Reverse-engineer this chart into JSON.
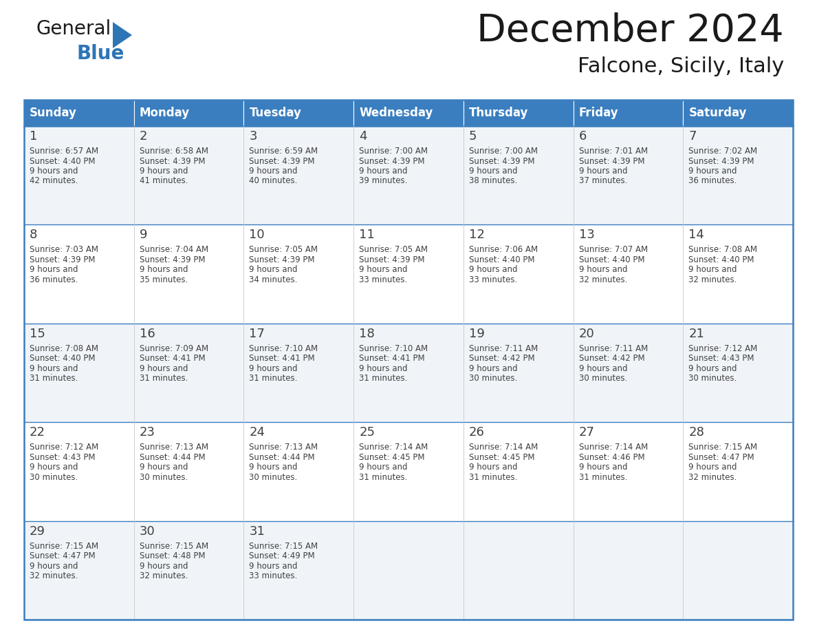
{
  "title": "December 2024",
  "subtitle": "Falcone, Sicily, Italy",
  "header_bg_color": "#3A7EC0",
  "header_text_color": "#FFFFFF",
  "days_of_week": [
    "Sunday",
    "Monday",
    "Tuesday",
    "Wednesday",
    "Thursday",
    "Friday",
    "Saturday"
  ],
  "cell_bg_color_odd": "#F0F4F8",
  "cell_bg_color_even": "#FFFFFF",
  "border_color": "#3A7EC0",
  "text_color": "#404040",
  "logo_general_color": "#1a1a1a",
  "logo_blue_color": "#2E75B6",
  "logo_triangle_color": "#2E75B6",
  "days": [
    {
      "day": 1,
      "col": 0,
      "row": 0,
      "sunrise": "6:57 AM",
      "sunset": "4:40 PM",
      "daylight": "9 hours and 42 minutes."
    },
    {
      "day": 2,
      "col": 1,
      "row": 0,
      "sunrise": "6:58 AM",
      "sunset": "4:39 PM",
      "daylight": "9 hours and 41 minutes."
    },
    {
      "day": 3,
      "col": 2,
      "row": 0,
      "sunrise": "6:59 AM",
      "sunset": "4:39 PM",
      "daylight": "9 hours and 40 minutes."
    },
    {
      "day": 4,
      "col": 3,
      "row": 0,
      "sunrise": "7:00 AM",
      "sunset": "4:39 PM",
      "daylight": "9 hours and 39 minutes."
    },
    {
      "day": 5,
      "col": 4,
      "row": 0,
      "sunrise": "7:00 AM",
      "sunset": "4:39 PM",
      "daylight": "9 hours and 38 minutes."
    },
    {
      "day": 6,
      "col": 5,
      "row": 0,
      "sunrise": "7:01 AM",
      "sunset": "4:39 PM",
      "daylight": "9 hours and 37 minutes."
    },
    {
      "day": 7,
      "col": 6,
      "row": 0,
      "sunrise": "7:02 AM",
      "sunset": "4:39 PM",
      "daylight": "9 hours and 36 minutes."
    },
    {
      "day": 8,
      "col": 0,
      "row": 1,
      "sunrise": "7:03 AM",
      "sunset": "4:39 PM",
      "daylight": "9 hours and 36 minutes."
    },
    {
      "day": 9,
      "col": 1,
      "row": 1,
      "sunrise": "7:04 AM",
      "sunset": "4:39 PM",
      "daylight": "9 hours and 35 minutes."
    },
    {
      "day": 10,
      "col": 2,
      "row": 1,
      "sunrise": "7:05 AM",
      "sunset": "4:39 PM",
      "daylight": "9 hours and 34 minutes."
    },
    {
      "day": 11,
      "col": 3,
      "row": 1,
      "sunrise": "7:05 AM",
      "sunset": "4:39 PM",
      "daylight": "9 hours and 33 minutes."
    },
    {
      "day": 12,
      "col": 4,
      "row": 1,
      "sunrise": "7:06 AM",
      "sunset": "4:40 PM",
      "daylight": "9 hours and 33 minutes."
    },
    {
      "day": 13,
      "col": 5,
      "row": 1,
      "sunrise": "7:07 AM",
      "sunset": "4:40 PM",
      "daylight": "9 hours and 32 minutes."
    },
    {
      "day": 14,
      "col": 6,
      "row": 1,
      "sunrise": "7:08 AM",
      "sunset": "4:40 PM",
      "daylight": "9 hours and 32 minutes."
    },
    {
      "day": 15,
      "col": 0,
      "row": 2,
      "sunrise": "7:08 AM",
      "sunset": "4:40 PM",
      "daylight": "9 hours and 31 minutes."
    },
    {
      "day": 16,
      "col": 1,
      "row": 2,
      "sunrise": "7:09 AM",
      "sunset": "4:41 PM",
      "daylight": "9 hours and 31 minutes."
    },
    {
      "day": 17,
      "col": 2,
      "row": 2,
      "sunrise": "7:10 AM",
      "sunset": "4:41 PM",
      "daylight": "9 hours and 31 minutes."
    },
    {
      "day": 18,
      "col": 3,
      "row": 2,
      "sunrise": "7:10 AM",
      "sunset": "4:41 PM",
      "daylight": "9 hours and 31 minutes."
    },
    {
      "day": 19,
      "col": 4,
      "row": 2,
      "sunrise": "7:11 AM",
      "sunset": "4:42 PM",
      "daylight": "9 hours and 30 minutes."
    },
    {
      "day": 20,
      "col": 5,
      "row": 2,
      "sunrise": "7:11 AM",
      "sunset": "4:42 PM",
      "daylight": "9 hours and 30 minutes."
    },
    {
      "day": 21,
      "col": 6,
      "row": 2,
      "sunrise": "7:12 AM",
      "sunset": "4:43 PM",
      "daylight": "9 hours and 30 minutes."
    },
    {
      "day": 22,
      "col": 0,
      "row": 3,
      "sunrise": "7:12 AM",
      "sunset": "4:43 PM",
      "daylight": "9 hours and 30 minutes."
    },
    {
      "day": 23,
      "col": 1,
      "row": 3,
      "sunrise": "7:13 AM",
      "sunset": "4:44 PM",
      "daylight": "9 hours and 30 minutes."
    },
    {
      "day": 24,
      "col": 2,
      "row": 3,
      "sunrise": "7:13 AM",
      "sunset": "4:44 PM",
      "daylight": "9 hours and 30 minutes."
    },
    {
      "day": 25,
      "col": 3,
      "row": 3,
      "sunrise": "7:14 AM",
      "sunset": "4:45 PM",
      "daylight": "9 hours and 31 minutes."
    },
    {
      "day": 26,
      "col": 4,
      "row": 3,
      "sunrise": "7:14 AM",
      "sunset": "4:45 PM",
      "daylight": "9 hours and 31 minutes."
    },
    {
      "day": 27,
      "col": 5,
      "row": 3,
      "sunrise": "7:14 AM",
      "sunset": "4:46 PM",
      "daylight": "9 hours and 31 minutes."
    },
    {
      "day": 28,
      "col": 6,
      "row": 3,
      "sunrise": "7:15 AM",
      "sunset": "4:47 PM",
      "daylight": "9 hours and 32 minutes."
    },
    {
      "day": 29,
      "col": 0,
      "row": 4,
      "sunrise": "7:15 AM",
      "sunset": "4:47 PM",
      "daylight": "9 hours and 32 minutes."
    },
    {
      "day": 30,
      "col": 1,
      "row": 4,
      "sunrise": "7:15 AM",
      "sunset": "4:48 PM",
      "daylight": "9 hours and 32 minutes."
    },
    {
      "day": 31,
      "col": 2,
      "row": 4,
      "sunrise": "7:15 AM",
      "sunset": "4:49 PM",
      "daylight": "9 hours and 33 minutes."
    }
  ]
}
